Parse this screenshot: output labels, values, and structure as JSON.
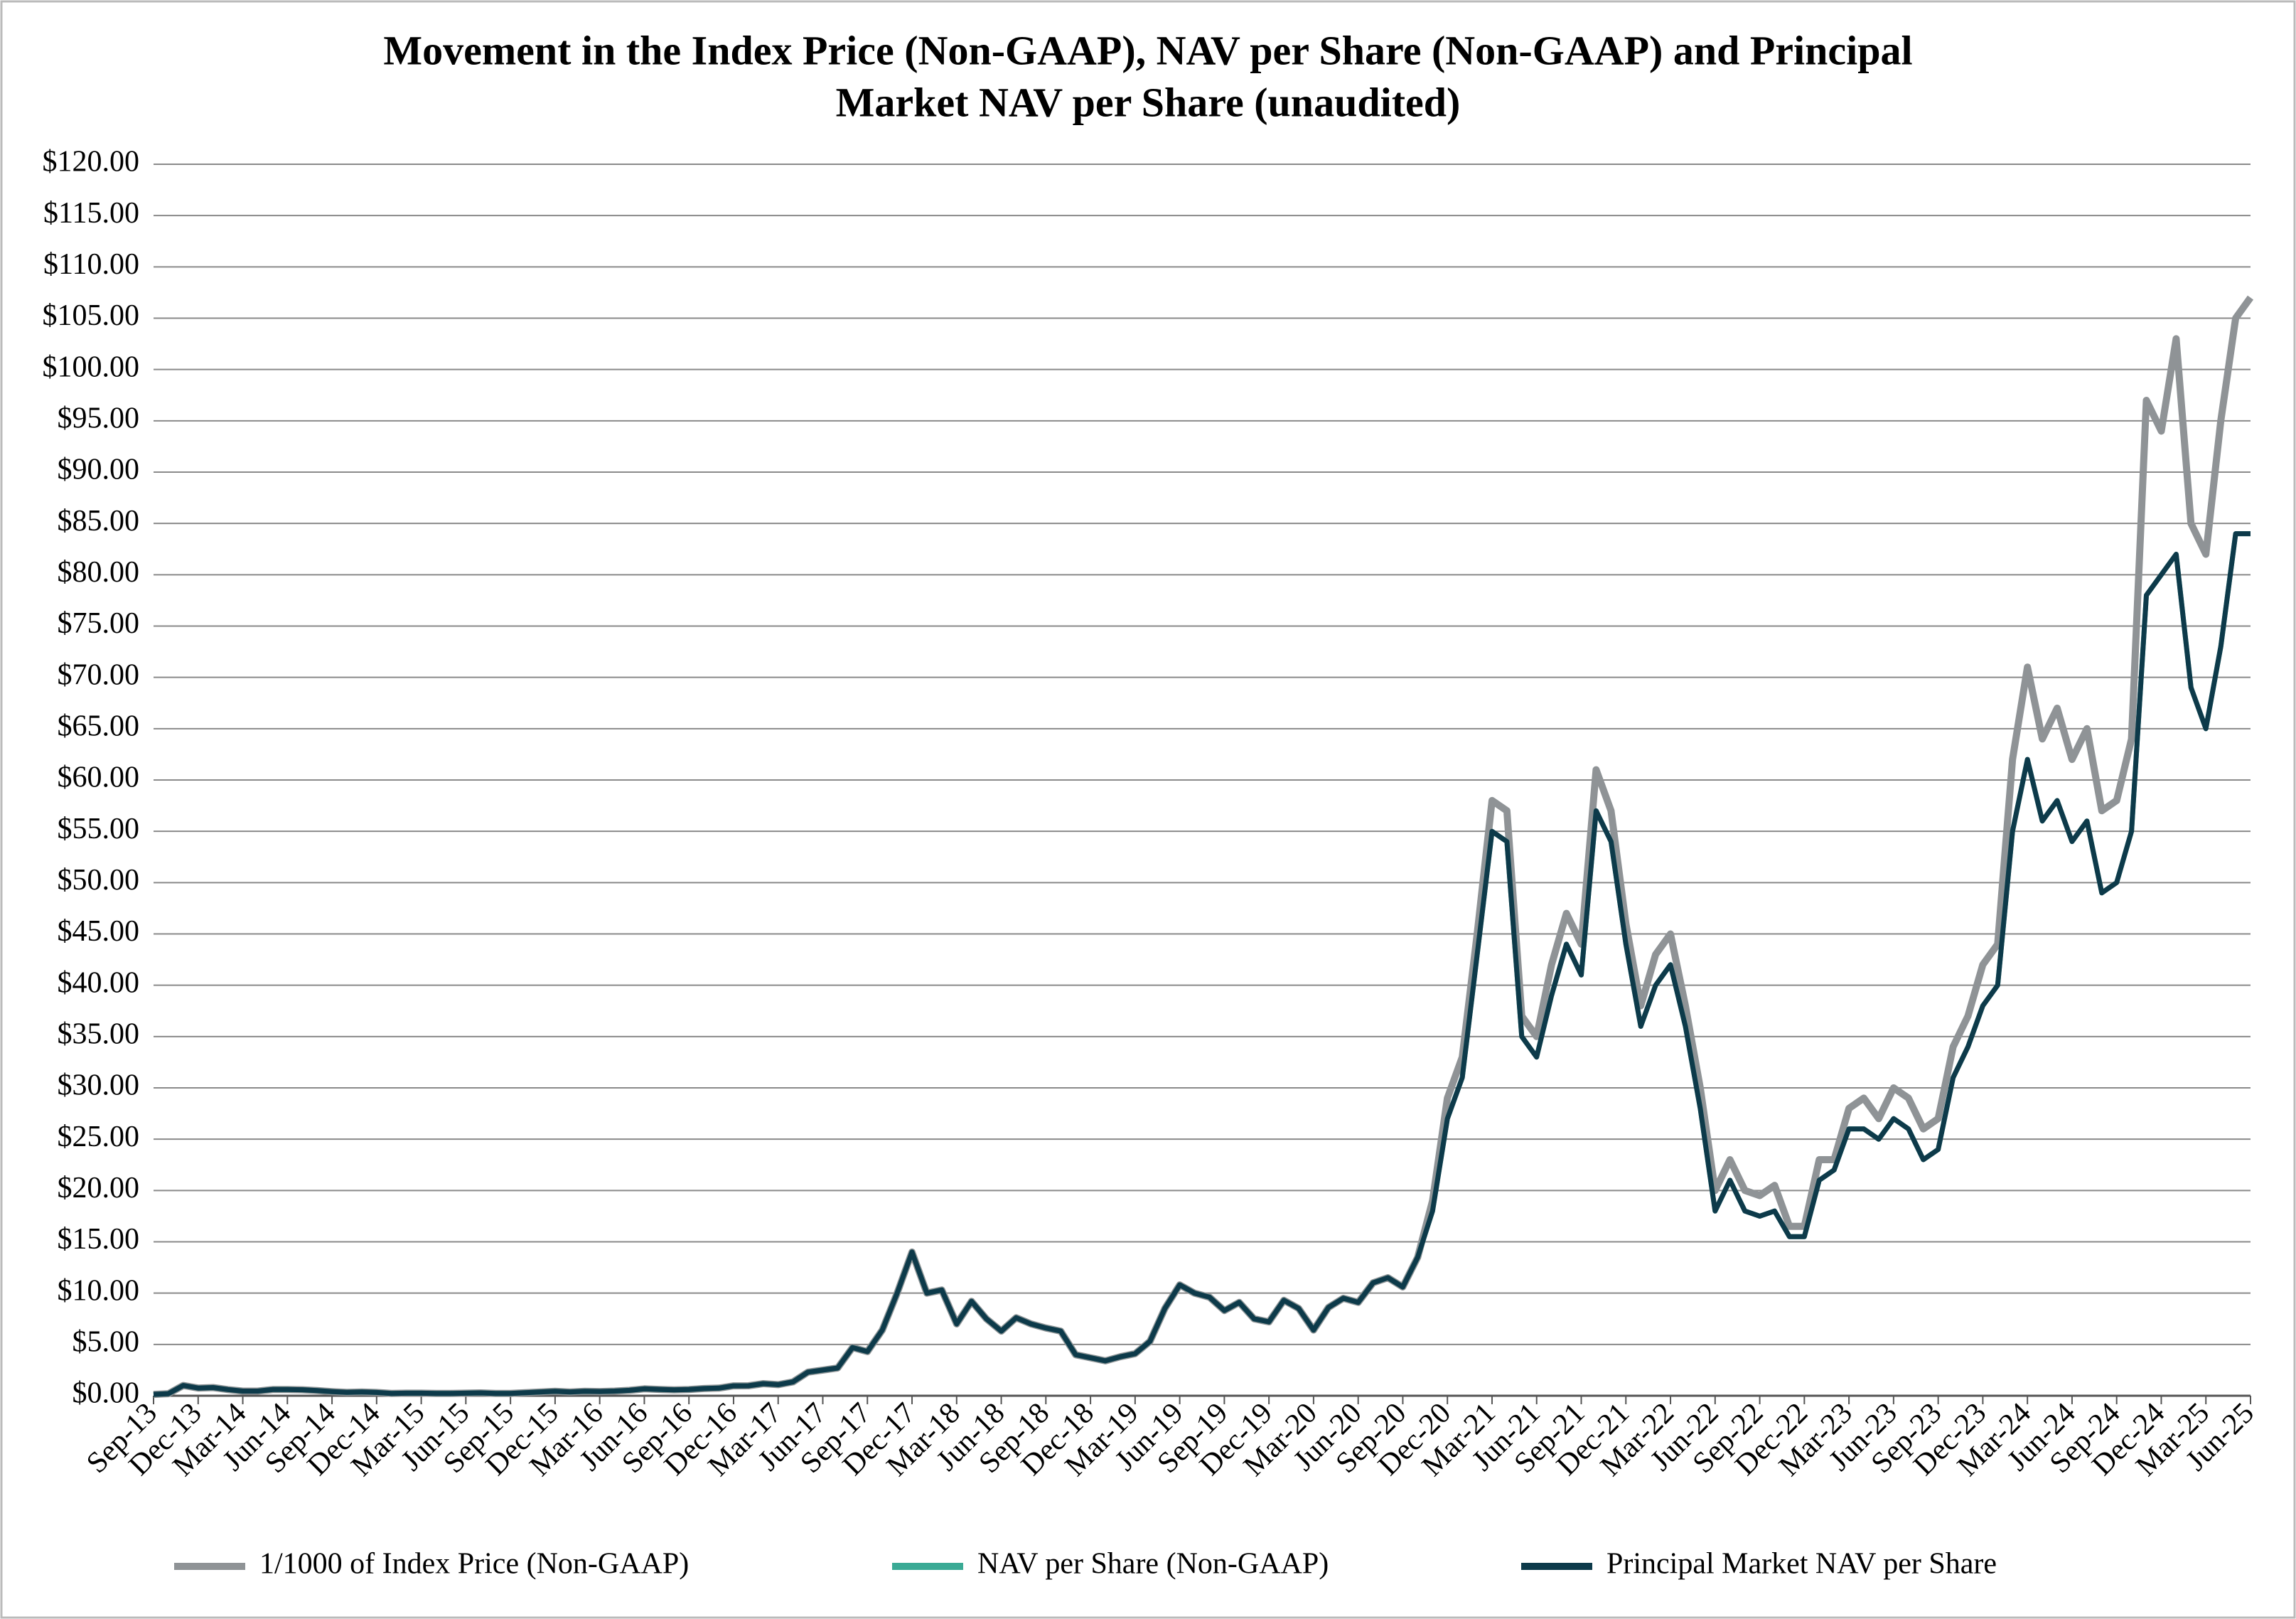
{
  "chart_data": {
    "type": "line",
    "title": [
      "Movement in the Index Price (Non-GAAP), NAV per Share (Non-GAAP) and Principal",
      "Market NAV per Share (unaudited)"
    ],
    "categories": [
      "Sep-13",
      null,
      null,
      "Dec-13",
      null,
      null,
      "Mar-14",
      null,
      null,
      "Jun-14",
      null,
      null,
      "Sep-14",
      null,
      null,
      "Dec-14",
      null,
      null,
      "Mar-15",
      null,
      null,
      "Jun-15",
      null,
      null,
      "Sep-15",
      null,
      null,
      "Dec-15",
      null,
      null,
      "Mar-16",
      null,
      null,
      "Jun-16",
      null,
      null,
      "Sep-16",
      null,
      null,
      "Dec-16",
      null,
      null,
      "Mar-17",
      null,
      null,
      "Jun-17",
      null,
      null,
      "Sep-17",
      null,
      null,
      "Dec-17",
      null,
      null,
      "Mar-18",
      null,
      null,
      "Jun-18",
      null,
      null,
      "Sep-18",
      null,
      null,
      "Dec-18",
      null,
      null,
      "Mar-19",
      null,
      null,
      "Jun-19",
      null,
      null,
      "Sep-19",
      null,
      null,
      "Dec-19",
      null,
      null,
      "Mar-20",
      null,
      null,
      "Jun-20",
      null,
      null,
      "Sep-20",
      null,
      null,
      "Dec-20",
      null,
      null,
      "Mar-21",
      null,
      null,
      "Jun-21",
      null,
      null,
      "Sep-21",
      null,
      null,
      "Dec-21",
      null,
      null,
      "Mar-22",
      null,
      null,
      "Jun-22",
      null,
      null,
      "Sep-22",
      null,
      null,
      "Dec-22",
      null,
      null,
      "Mar-23",
      null,
      null,
      "Jun-23",
      null,
      null,
      "Sep-23",
      null,
      null,
      "Dec-23",
      null,
      null,
      "Mar-24",
      null,
      null,
      "Jun-24",
      null,
      null,
      "Sep-24",
      null,
      null,
      "Dec-24",
      null,
      null,
      "Mar-25",
      null,
      null,
      "Jun-25"
    ],
    "series": [
      {
        "name": "1/1000 of Index Price (Non-GAAP)",
        "color": "#8f9396",
        "values": [
          0.13,
          0.2,
          1.0,
          0.75,
          0.8,
          0.6,
          0.45,
          0.45,
          0.6,
          0.6,
          0.58,
          0.5,
          0.4,
          0.33,
          0.37,
          0.32,
          0.22,
          0.25,
          0.25,
          0.23,
          0.23,
          0.25,
          0.28,
          0.23,
          0.23,
          0.3,
          0.37,
          0.43,
          0.37,
          0.43,
          0.41,
          0.45,
          0.53,
          0.67,
          0.62,
          0.57,
          0.6,
          0.7,
          0.74,
          0.96,
          0.97,
          1.18,
          1.08,
          1.35,
          2.3,
          2.5,
          2.7,
          4.7,
          4.3,
          6.4,
          10,
          14,
          10,
          10.3,
          7,
          9.2,
          7.5,
          6.3,
          7.6,
          7,
          6.6,
          6.3,
          4,
          3.7,
          3.4,
          3.8,
          4.1,
          5.3,
          8.5,
          10.8,
          10,
          9.6,
          8.3,
          9.1,
          7.5,
          7.2,
          9.3,
          8.5,
          6.4,
          8.6,
          9.5,
          9.1,
          11,
          11.5,
          10.6,
          13.5,
          19,
          29,
          33,
          45,
          58,
          57,
          37,
          35,
          42,
          47,
          44,
          61,
          57,
          46,
          38,
          43,
          45,
          38,
          30,
          20,
          23,
          20,
          19.5,
          20.5,
          16.5,
          16.5,
          23,
          23,
          28,
          29,
          27,
          30,
          29,
          26,
          27,
          34,
          37,
          42,
          44,
          62,
          71,
          64,
          67,
          62,
          65,
          57,
          58,
          64,
          97,
          94,
          103,
          85,
          82,
          95,
          105,
          107
        ]
      },
      {
        "name": "NAV per Share (Non-GAAP)",
        "color": "#3aaa95",
        "values": [
          0.13,
          0.2,
          1.0,
          0.75,
          0.8,
          0.6,
          0.45,
          0.45,
          0.6,
          0.6,
          0.58,
          0.5,
          0.4,
          0.33,
          0.37,
          0.32,
          0.22,
          0.25,
          0.25,
          0.23,
          0.23,
          0.25,
          0.28,
          0.23,
          0.23,
          0.3,
          0.37,
          0.43,
          0.37,
          0.43,
          0.41,
          0.45,
          0.53,
          0.67,
          0.62,
          0.57,
          0.6,
          0.7,
          0.74,
          0.96,
          0.97,
          1.18,
          1.08,
          1.35,
          2.3,
          2.5,
          2.7,
          4.7,
          4.3,
          6.4,
          10,
          14,
          10,
          10.3,
          7,
          9.2,
          7.5,
          6.3,
          7.6,
          7,
          6.6,
          6.3,
          4,
          3.7,
          3.4,
          3.8,
          4.1,
          5.3,
          8.5,
          10.8,
          10,
          9.6,
          8.3,
          9.1,
          7.5,
          7.2,
          9.3,
          8.5,
          6.4,
          8.6,
          9.5,
          9.1,
          11,
          11.5,
          10.6,
          13.5,
          18,
          27,
          31,
          43,
          55,
          54,
          35,
          33,
          39,
          44,
          41,
          57,
          54,
          44,
          36,
          40,
          42,
          36,
          28,
          18,
          21,
          18,
          17.5,
          18,
          15.5,
          15.5,
          21,
          22,
          26,
          26,
          25,
          27,
          26,
          23,
          24,
          31,
          34,
          38,
          40,
          55,
          62,
          56,
          58,
          54,
          56,
          49,
          50,
          55,
          78,
          80,
          82,
          69,
          65,
          73,
          84,
          84
        ]
      },
      {
        "name": "Principal Market NAV per Share",
        "color": "#0d3a4a",
        "values": [
          0.13,
          0.2,
          1.0,
          0.75,
          0.8,
          0.6,
          0.45,
          0.45,
          0.6,
          0.6,
          0.58,
          0.5,
          0.4,
          0.33,
          0.37,
          0.32,
          0.22,
          0.25,
          0.25,
          0.23,
          0.23,
          0.25,
          0.28,
          0.23,
          0.23,
          0.3,
          0.37,
          0.43,
          0.37,
          0.43,
          0.41,
          0.45,
          0.53,
          0.67,
          0.62,
          0.57,
          0.6,
          0.7,
          0.74,
          0.96,
          0.97,
          1.18,
          1.08,
          1.35,
          2.3,
          2.5,
          2.7,
          4.7,
          4.3,
          6.4,
          10,
          14,
          10,
          10.3,
          7,
          9.2,
          7.5,
          6.3,
          7.6,
          7,
          6.6,
          6.3,
          4,
          3.7,
          3.4,
          3.8,
          4.1,
          5.3,
          8.5,
          10.8,
          10,
          9.6,
          8.3,
          9.1,
          7.5,
          7.2,
          9.3,
          8.5,
          6.4,
          8.6,
          9.5,
          9.1,
          11,
          11.5,
          10.6,
          13.5,
          18,
          27,
          31,
          43,
          55,
          54,
          35,
          33,
          39,
          44,
          41,
          57,
          54,
          44,
          36,
          40,
          42,
          36,
          28,
          18,
          21,
          18,
          17.5,
          18,
          15.5,
          15.5,
          21,
          22,
          26,
          26,
          25,
          27,
          26,
          23,
          24,
          31,
          34,
          38,
          40,
          55,
          62,
          56,
          58,
          54,
          56,
          49,
          50,
          55,
          78,
          80,
          82,
          69,
          65,
          73,
          84,
          84
        ]
      }
    ],
    "ylim": [
      0,
      120
    ],
    "yticks": [
      {
        "value": 0,
        "label": "$0.00"
      },
      {
        "value": 5,
        "label": "$5.00"
      },
      {
        "value": 10,
        "label": "$10.00"
      },
      {
        "value": 15,
        "label": "$15.00"
      },
      {
        "value": 20,
        "label": "$20.00"
      },
      {
        "value": 25,
        "label": "$25.00"
      },
      {
        "value": 30,
        "label": "$30.00"
      },
      {
        "value": 35,
        "label": "$35.00"
      },
      {
        "value": 40,
        "label": "$40.00"
      },
      {
        "value": 45,
        "label": "$45.00"
      },
      {
        "value": 50,
        "label": "$50.00"
      },
      {
        "value": 55,
        "label": "$55.00"
      },
      {
        "value": 60,
        "label": "$60.00"
      },
      {
        "value": 65,
        "label": "$65.00"
      },
      {
        "value": 70,
        "label": "$70.00"
      },
      {
        "value": 75,
        "label": "$75.00"
      },
      {
        "value": 80,
        "label": "$80.00"
      },
      {
        "value": 85,
        "label": "$85.00"
      },
      {
        "value": 90,
        "label": "$90.00"
      },
      {
        "value": 95,
        "label": "$95.00"
      },
      {
        "value": 100,
        "label": "$100.00"
      },
      {
        "value": 105,
        "label": "$105.00"
      },
      {
        "value": 110,
        "label": "$110.00"
      },
      {
        "value": 115,
        "label": "$115.00"
      },
      {
        "value": 120,
        "label": "$120.00"
      }
    ],
    "grid": true,
    "legend": "bottom"
  }
}
